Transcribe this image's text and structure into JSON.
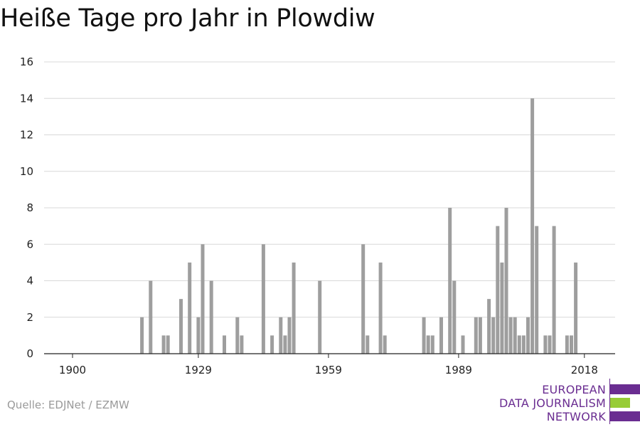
{
  "title": "Heiße Tage pro Jahr in Plowdiw",
  "source": "Quelle: EDJNet / EZMW",
  "logo": {
    "lines": [
      "EUROPEAN",
      "DATA JOURNALISM",
      "NETWORK"
    ],
    "colors": {
      "purple": "#6a2d91",
      "green": "#97cc36"
    }
  },
  "colors": {
    "bar": "#9e9e9e",
    "grid": "#d8d8d8",
    "axis": "#222222",
    "title": "#111111",
    "source": "#9a9a9a"
  },
  "chart_data": {
    "type": "bar",
    "title": "Heiße Tage pro Jahr in Plowdiw",
    "xlabel": "",
    "ylabel": "",
    "xlim": [
      1900,
      2018
    ],
    "ylim": [
      0,
      16
    ],
    "yticks": [
      0,
      2,
      4,
      6,
      8,
      10,
      12,
      14,
      16
    ],
    "xticks": [
      1900,
      1929,
      1959,
      1989,
      2018
    ],
    "grid": true,
    "legend": "none",
    "x": [
      1916,
      1918,
      1921,
      1922,
      1925,
      1927,
      1929,
      1930,
      1932,
      1935,
      1938,
      1939,
      1944,
      1946,
      1948,
      1949,
      1950,
      1951,
      1957,
      1967,
      1968,
      1971,
      1972,
      1981,
      1982,
      1983,
      1985,
      1987,
      1988,
      1990,
      1993,
      1994,
      1996,
      1997,
      1998,
      1999,
      2000,
      2001,
      2002,
      2003,
      2004,
      2005,
      2006,
      2007,
      2009,
      2010,
      2011,
      2014,
      2015,
      2016
    ],
    "values": [
      2,
      4,
      1,
      1,
      3,
      5,
      2,
      6,
      4,
      1,
      2,
      1,
      6,
      1,
      2,
      1,
      2,
      5,
      4,
      6,
      1,
      5,
      1,
      2,
      1,
      1,
      2,
      8,
      4,
      1,
      2,
      2,
      3,
      2,
      7,
      5,
      8,
      2,
      2,
      1,
      1,
      2,
      14,
      7,
      1,
      1,
      7,
      1,
      1,
      5
    ]
  }
}
